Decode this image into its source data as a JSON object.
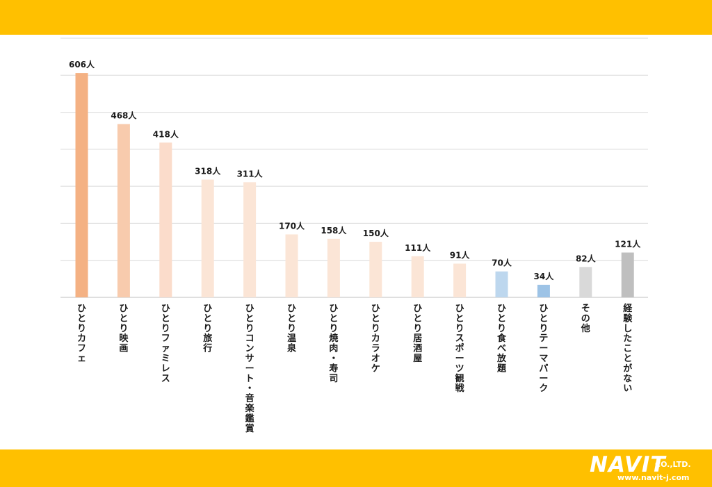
{
  "chart_data": {
    "type": "bar",
    "title": "",
    "xlabel": "",
    "ylabel": "",
    "ylim": [
      0,
      700
    ],
    "grid": true,
    "value_suffix": "人",
    "categories": [
      "ひとりカフェ",
      "ひとり映画",
      "ひとりファミレス",
      "ひとり旅行",
      "ひとりコンサート・音楽鑑賞",
      "ひとり温泉",
      "ひとり焼肉・寿司",
      "ひとりカラオケ",
      "ひとり居酒屋",
      "ひとりスポーツ観戦",
      "ひとり食べ放題",
      "ひとりテーマパーク",
      "その他",
      "経験したことがない"
    ],
    "values": [
      606,
      468,
      418,
      318,
      311,
      170,
      158,
      150,
      111,
      91,
      70,
      34,
      82,
      121
    ],
    "value_labels": [
      "606人",
      "468人",
      "418人",
      "318人",
      "311人",
      "170人",
      "158人",
      "150人",
      "111人",
      "91人",
      "70人",
      "34人",
      "82人",
      "121人"
    ],
    "bar_colors": [
      "#F4B183",
      "#F8CBAD",
      "#FBDCCB",
      "#FBE5D6",
      "#FBE5D6",
      "#FBE5D6",
      "#FBE5D6",
      "#FBE5D6",
      "#FBE5D6",
      "#FBE5D6",
      "#BDD7EE",
      "#9DC3E6",
      "#D9D9D9",
      "#BFBFBF"
    ]
  },
  "colors": {
    "band": "#FFC000",
    "grid": "#D9D9D9",
    "axis": "#BFBFBF"
  },
  "logo": {
    "main": "NAVIT",
    "suffix": "CO.,LTD.",
    "url": "www.navit-j.com"
  }
}
